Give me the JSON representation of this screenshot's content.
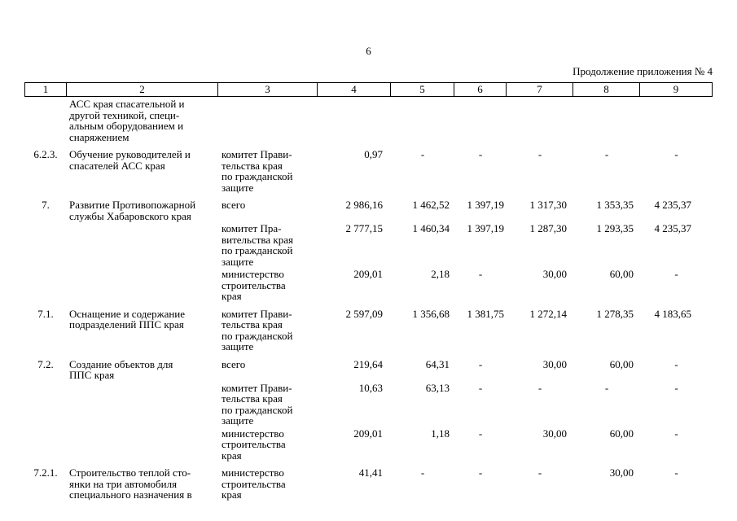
{
  "page": {
    "number": "6",
    "continuation_label": "Продолжение приложения № 4"
  },
  "table": {
    "column_headers": [
      "1",
      "2",
      "3",
      "4",
      "5",
      "6",
      "7",
      "8",
      "9"
    ],
    "rows": [
      {
        "num": "",
        "name": "АСС края спасательной и\nдругой техникой, специ-\nальным оборудованием и\nснаряжением",
        "executor": "",
        "values": [
          "",
          "",
          "",
          "",
          "",
          ""
        ]
      },
      {
        "num": "6.2.3.",
        "name": "Обучение руководителей и\nспасателей АСС края",
        "executor": "комитет Прави-\nтельства края\nпо гражданской\nзащите",
        "values": [
          "0,97",
          "-",
          "-",
          "-",
          "-",
          "-"
        ]
      },
      {
        "num": "7.",
        "name": "Развитие Противопожарной\nслужбы Хабаровского края",
        "executor": "всего",
        "values": [
          "2 986,16",
          "1 462,52",
          "1 397,19",
          "1 317,30",
          "1 353,35",
          "4 235,37"
        ]
      },
      {
        "num": "",
        "name": "",
        "executor": "комитет Пра-\nвительства края\nпо гражданской\nзащите",
        "values": [
          "2 777,15",
          "1 460,34",
          "1 397,19",
          "1 287,30",
          "1 293,35",
          "4 235,37"
        ]
      },
      {
        "num": "",
        "name": "",
        "executor": "министерство\nстроительства\nкрая",
        "values": [
          "209,01",
          "2,18",
          "-",
          "30,00",
          "60,00",
          "-"
        ]
      },
      {
        "num": "7.1.",
        "name": "Оснащение и содержание\nподразделений ППС края",
        "executor": "комитет Прави-\nтельства края\nпо гражданской\nзащите",
        "values": [
          "2 597,09",
          "1 356,68",
          "1 381,75",
          "1 272,14",
          "1 278,35",
          "4 183,65"
        ]
      },
      {
        "num": "7.2.",
        "name": "Создание объектов для\nППС края",
        "executor": "всего",
        "values": [
          "219,64",
          "64,31",
          "-",
          "30,00",
          "60,00",
          "-"
        ]
      },
      {
        "num": "",
        "name": "",
        "executor": "комитет Прави-\nтельства края\nпо гражданской\nзащите",
        "values": [
          "10,63",
          "63,13",
          "-",
          "-",
          "-",
          "-"
        ]
      },
      {
        "num": "",
        "name": "",
        "executor": "министерство\nстроительства\nкрая",
        "values": [
          "209,01",
          "1,18",
          "-",
          "30,00",
          "60,00",
          "-"
        ]
      },
      {
        "num": "7.2.1.",
        "name": "Строительство теплой сто-\nянки на три автомобиля\nспециального назначения в",
        "executor": "министерство\nстроительства\nкрая",
        "values": [
          "41,41",
          "-",
          "-",
          "-",
          "30,00",
          "-"
        ]
      }
    ]
  }
}
